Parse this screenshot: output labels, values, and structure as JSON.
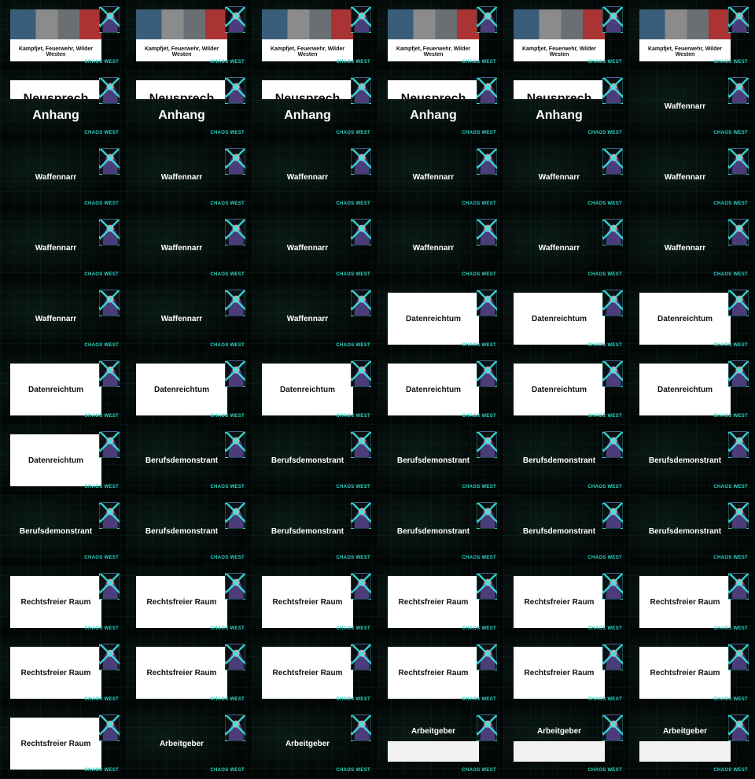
{
  "logo_text": "CHAOS WEST",
  "accent_color": "#2fd6c6",
  "slides": [
    {
      "text": "Kampfjet, Feuerwehr, Wilder Westen",
      "style": "photo"
    },
    {
      "text": "Kampfjet, Feuerwehr, Wilder Westen",
      "style": "photo"
    },
    {
      "text": "Kampfjet, Feuerwehr, Wilder Westen",
      "style": "photo"
    },
    {
      "text": "Kampfjet, Feuerwehr, Wilder Westen",
      "style": "photo"
    },
    {
      "text": "Kampfjet, Feuerwehr, Wilder Westen",
      "style": "photo"
    },
    {
      "text": "Kampfjet, Feuerwehr, Wilder Westen",
      "style": "photo"
    },
    {
      "text": "Neusprech",
      "text2": "Anhang",
      "style": "big"
    },
    {
      "text": "Neusprech",
      "text2": "Anhang",
      "style": "big"
    },
    {
      "text": "Neusprech",
      "text2": "Anhang",
      "style": "big"
    },
    {
      "text": "Neusprech",
      "text2": "Anhang",
      "style": "big"
    },
    {
      "text": "Neusprech",
      "text2": "Anhang",
      "style": "big"
    },
    {
      "text": "Waffennarr",
      "style": "dark"
    },
    {
      "text": "Waffennarr",
      "style": "dark"
    },
    {
      "text": "Waffennarr",
      "style": "dark"
    },
    {
      "text": "Waffennarr",
      "style": "dark"
    },
    {
      "text": "Waffennarr",
      "style": "dark"
    },
    {
      "text": "Waffennarr",
      "style": "dark"
    },
    {
      "text": "Waffennarr",
      "style": "dark"
    },
    {
      "text": "Waffennarr",
      "style": "dark"
    },
    {
      "text": "Waffennarr",
      "style": "dark"
    },
    {
      "text": "Waffennarr",
      "style": "dark"
    },
    {
      "text": "Waffennarr",
      "style": "dark"
    },
    {
      "text": "Waffennarr",
      "style": "dark"
    },
    {
      "text": "Waffennarr",
      "style": "dark"
    },
    {
      "text": "Waffennarr",
      "style": "dark"
    },
    {
      "text": "Waffennarr",
      "style": "dark"
    },
    {
      "text": "Waffennarr",
      "style": "dark"
    },
    {
      "text": "Datenreichtum",
      "style": "white"
    },
    {
      "text": "Datenreichtum",
      "style": "white"
    },
    {
      "text": "Datenreichtum",
      "style": "white"
    },
    {
      "text": "Datenreichtum",
      "style": "white"
    },
    {
      "text": "Datenreichtum",
      "style": "white"
    },
    {
      "text": "Datenreichtum",
      "style": "white"
    },
    {
      "text": "Datenreichtum",
      "style": "white"
    },
    {
      "text": "Datenreichtum",
      "style": "white"
    },
    {
      "text": "Datenreichtum",
      "style": "white"
    },
    {
      "text": "Datenreichtum",
      "style": "white"
    },
    {
      "text": "Berufsdemonstrant",
      "style": "dark"
    },
    {
      "text": "Berufsdemonstrant",
      "style": "dark"
    },
    {
      "text": "Berufsdemonstrant",
      "style": "dark"
    },
    {
      "text": "Berufsdemonstrant",
      "style": "dark"
    },
    {
      "text": "Berufsdemonstrant",
      "style": "dark"
    },
    {
      "text": "Berufsdemonstrant",
      "style": "dark"
    },
    {
      "text": "Berufsdemonstrant",
      "style": "dark"
    },
    {
      "text": "Berufsdemonstrant",
      "style": "dark"
    },
    {
      "text": "Berufsdemonstrant",
      "style": "dark"
    },
    {
      "text": "Berufsdemonstrant",
      "style": "dark"
    },
    {
      "text": "Berufsdemonstrant",
      "style": "dark"
    },
    {
      "text": "Rechtsfreier Raum",
      "style": "white"
    },
    {
      "text": "Rechtsfreier Raum",
      "style": "white"
    },
    {
      "text": "Rechtsfreier Raum",
      "style": "white"
    },
    {
      "text": "Rechtsfreier Raum",
      "style": "white"
    },
    {
      "text": "Rechtsfreier Raum",
      "style": "white"
    },
    {
      "text": "Rechtsfreier Raum",
      "style": "white"
    },
    {
      "text": "Rechtsfreier Raum",
      "style": "white"
    },
    {
      "text": "Rechtsfreier Raum",
      "style": "white"
    },
    {
      "text": "Rechtsfreier Raum",
      "style": "white"
    },
    {
      "text": "Rechtsfreier Raum",
      "style": "white"
    },
    {
      "text": "Rechtsfreier Raum",
      "style": "white"
    },
    {
      "text": "Rechtsfreier Raum",
      "style": "white"
    },
    {
      "text": "Rechtsfreier Raum",
      "style": "white"
    },
    {
      "text": "Arbeitgeber",
      "style": "dark"
    },
    {
      "text": "Arbeitgeber",
      "style": "dark"
    },
    {
      "text": "Arbeitgeber",
      "style": "textbox"
    },
    {
      "text": "Arbeitgeber",
      "style": "textbox"
    },
    {
      "text": "Arbeitgeber",
      "style": "textbox"
    }
  ]
}
